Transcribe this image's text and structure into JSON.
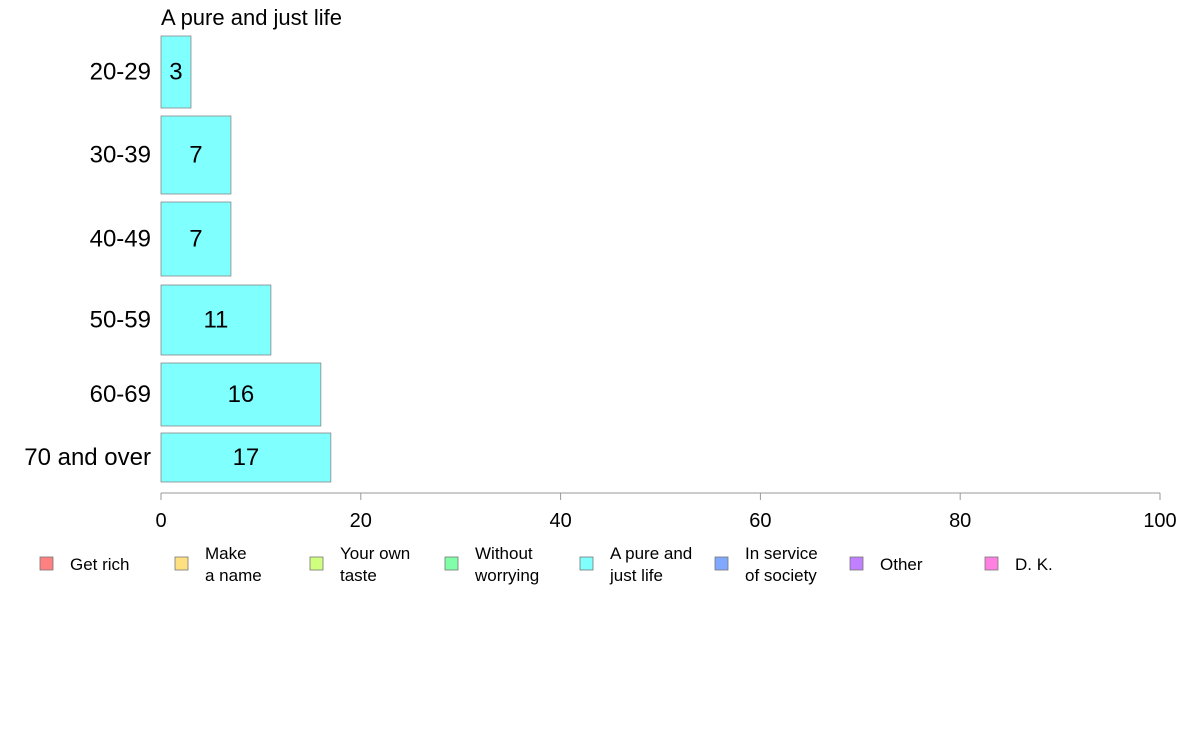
{
  "chart_data": {
    "type": "bar",
    "orientation": "horizontal",
    "title": "A pure and just life",
    "categories": [
      "20-29",
      "30-39",
      "40-49",
      "50-59",
      "60-69",
      "70 and over"
    ],
    "series": [
      {
        "name": "A pure and just life",
        "values": [
          3,
          7,
          7,
          11,
          16,
          17
        ],
        "color": "#80ffff"
      }
    ],
    "value_labels": [
      "3",
      "7",
      "7",
      "11",
      "16",
      "17"
    ],
    "xlim": [
      0,
      100
    ],
    "xticks": [
      0,
      20,
      40,
      60,
      80,
      100
    ],
    "grid": false,
    "legend": {
      "placement": "bottom",
      "items": [
        {
          "lines": [
            "Get rich"
          ],
          "color": "#ff8080"
        },
        {
          "lines": [
            "Make",
            "a name"
          ],
          "color": "#ffe080"
        },
        {
          "lines": [
            "Your own",
            "taste"
          ],
          "color": "#d0ff80"
        },
        {
          "lines": [
            "Without",
            "worrying"
          ],
          "color": "#80ffa8"
        },
        {
          "lines": [
            "A pure and",
            "just life"
          ],
          "color": "#80ffff"
        },
        {
          "lines": [
            "In service",
            "of society"
          ],
          "color": "#80a8ff"
        },
        {
          "lines": [
            "Other"
          ],
          "color": "#c080ff"
        },
        {
          "lines": [
            "D. K."
          ],
          "color": "#ff80e0"
        }
      ]
    }
  }
}
